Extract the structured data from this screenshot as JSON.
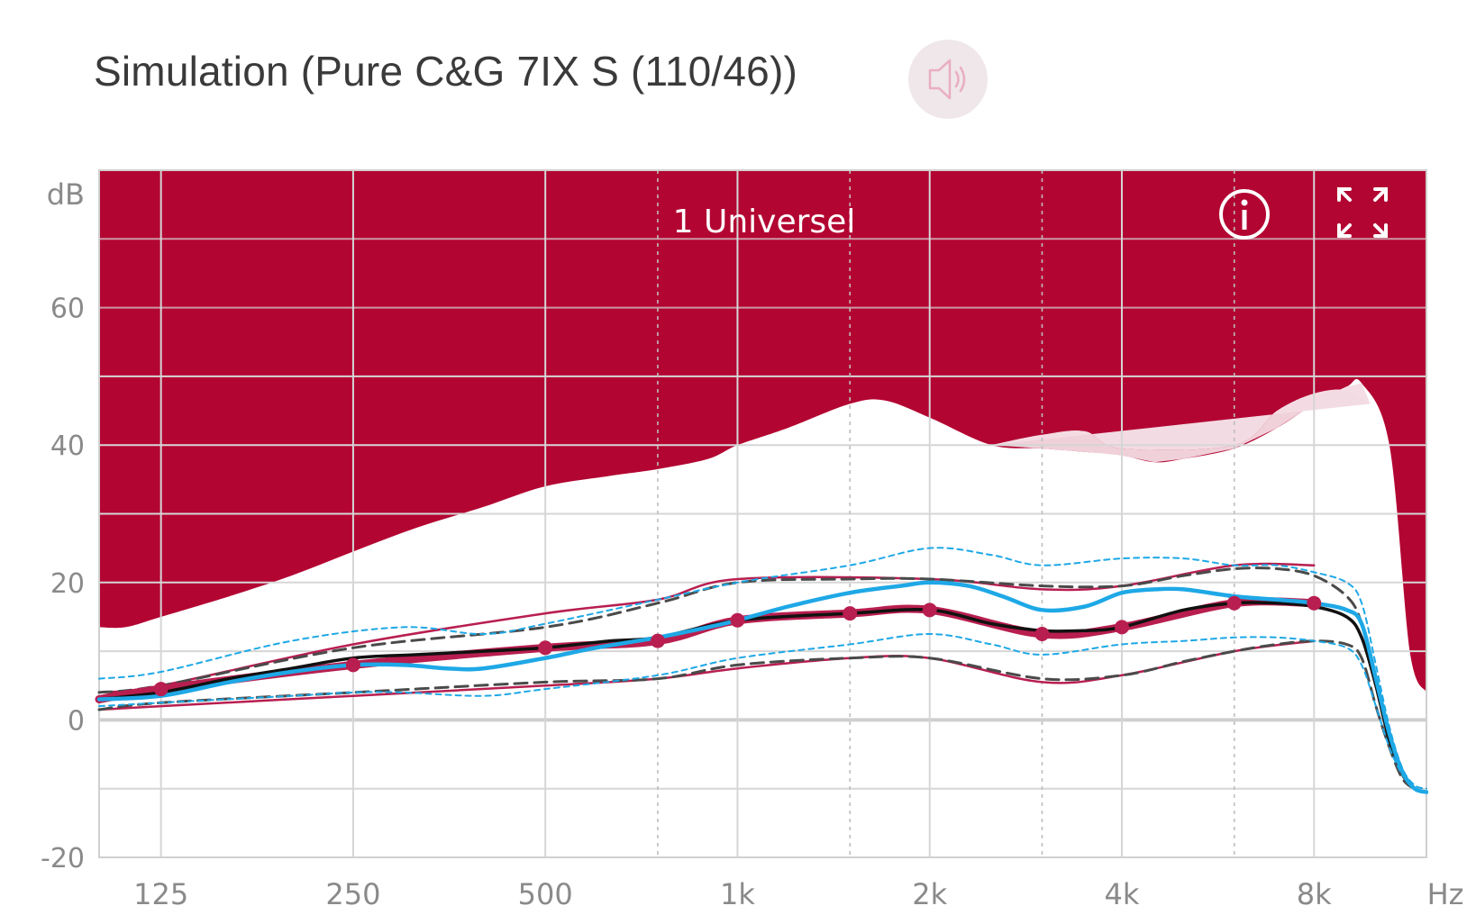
{
  "header": {
    "title": "Simulation (Pure C&G 7IX S (110/46))",
    "speaker_icon": "speaker-icon"
  },
  "colors": {
    "crimson": "#b30532",
    "pink_fill": "#f3dbe3",
    "target_line": "#b81e4f",
    "simulation_line": "#1ea8e6",
    "aided_line": "#111111",
    "dashed_line": "#4a4a4a"
  },
  "chart_data": {
    "type": "line",
    "program_label": "1 Universel",
    "ylabel": "dB",
    "xlabel": "Hz",
    "x_scale": "log",
    "xlim": [
      100,
      12000
    ],
    "ylim": [
      -20,
      80
    ],
    "y_ticks": [
      {
        "value": -20,
        "label": "-20"
      },
      {
        "value": 0,
        "label": "0"
      },
      {
        "value": 20,
        "label": "20"
      },
      {
        "value": 40,
        "label": "40"
      },
      {
        "value": 60,
        "label": "60"
      }
    ],
    "y_grid": [
      -20,
      -10,
      0,
      10,
      20,
      30,
      40,
      50,
      60,
      70,
      80
    ],
    "x_ticks": [
      {
        "value": 125,
        "label": "125"
      },
      {
        "value": 250,
        "label": "250"
      },
      {
        "value": 500,
        "label": "500"
      },
      {
        "value": 1000,
        "label": "1k"
      },
      {
        "value": 2000,
        "label": "2k"
      },
      {
        "value": 4000,
        "label": "4k"
      },
      {
        "value": 8000,
        "label": "8k"
      }
    ],
    "x_minor_grid": [
      750,
      1500,
      3000,
      6000
    ],
    "icons": {
      "info": "info-icon",
      "expand": "expand-icon"
    },
    "series": [
      {
        "role": "uncomfortable_level",
        "x": [
          100,
          110,
          125,
          160,
          200,
          250,
          315,
          400,
          500,
          630,
          750,
          900,
          1000,
          1200,
          1500,
          1700,
          2000,
          2500,
          3000,
          3500,
          4000,
          4500,
          5000,
          6000,
          7000,
          8000,
          9000,
          9500,
          10500,
          11300,
          12000
        ],
        "y": [
          13.5,
          13.5,
          15,
          18,
          21,
          24.5,
          28,
          31,
          34,
          35.5,
          36.5,
          38,
          40,
          42.5,
          46,
          46.5,
          44,
          40,
          39.5,
          39,
          38.5,
          37.5,
          38,
          39.5,
          42.5,
          46,
          48.5,
          49,
          40,
          10,
          4
        ]
      },
      {
        "role": "uncomfortable_level_alt",
        "x": [
          2500,
          3000,
          3500,
          4000,
          6000,
          7000,
          8000,
          9000,
          9800
        ],
        "y": [
          40,
          41.5,
          42,
          39.5,
          40,
          45,
          47.5,
          48,
          46
        ]
      },
      {
        "role": "target_upper",
        "x": [
          100,
          125,
          250,
          500,
          750,
          1000,
          2000,
          3000,
          4000,
          6000,
          8000
        ],
        "y": [
          4,
          5,
          11,
          15.5,
          17.5,
          20.5,
          20.5,
          19,
          19.5,
          22.5,
          22.5
        ]
      },
      {
        "role": "target",
        "x": [
          100,
          125,
          250,
          500,
          750,
          1000,
          1500,
          2000,
          3000,
          4000,
          6000,
          8000
        ],
        "y": [
          3,
          4.5,
          8,
          10.5,
          11.5,
          14.5,
          15.5,
          16,
          12.5,
          13.5,
          17,
          17
        ]
      },
      {
        "role": "target_lower",
        "x": [
          100,
          125,
          250,
          500,
          750,
          1000,
          1500,
          2000,
          3000,
          4000,
          6000,
          8000
        ],
        "y": [
          1.5,
          2,
          3.5,
          5,
          6,
          7.5,
          9,
          9,
          5.5,
          6.5,
          10,
          11.5
        ]
      },
      {
        "role": "aided_max_dashed",
        "x": [
          100,
          125,
          250,
          500,
          750,
          1000,
          1500,
          2000,
          3000,
          4000,
          5000,
          6000,
          7000,
          8000,
          9000,
          9500,
          10000,
          10500,
          11000,
          11500,
          12000
        ],
        "y": [
          4,
          5,
          10.5,
          13.5,
          17,
          20,
          20.5,
          20.5,
          19.5,
          19.5,
          21,
          22,
          22,
          21,
          18,
          14,
          5,
          -3,
          -8,
          -10,
          -10.5
        ]
      },
      {
        "role": "aided_min_dashed",
        "x": [
          100,
          125,
          250,
          500,
          750,
          1000,
          1500,
          2000,
          3000,
          4000,
          5000,
          6000,
          7000,
          8000,
          9000,
          9500,
          10000,
          10500,
          11000,
          11500,
          12000
        ],
        "y": [
          1.5,
          2.5,
          4,
          5.5,
          6,
          8,
          9,
          9,
          6,
          6.5,
          8.5,
          10,
          11,
          11.5,
          11,
          9,
          2,
          -4,
          -8.5,
          -10,
          -10.5
        ]
      },
      {
        "role": "aided",
        "x": [
          100,
          125,
          160,
          200,
          250,
          315,
          400,
          500,
          630,
          750,
          1000,
          1500,
          2000,
          2500,
          3000,
          3500,
          4000,
          5000,
          6000,
          7000,
          8000,
          9000,
          9500,
          10000,
          10500,
          11000,
          11500,
          12000
        ],
        "y": [
          3,
          4,
          6,
          7.5,
          9,
          9.5,
          10,
          10.5,
          11.5,
          12,
          14.5,
          15.5,
          16,
          14,
          13,
          13,
          13.5,
          16,
          17,
          17,
          16.5,
          15,
          12,
          5,
          -3,
          -7.5,
          -10,
          -10.5
        ]
      },
      {
        "role": "simulation_upper_dashed",
        "x": [
          100,
          125,
          200,
          300,
          400,
          500,
          750,
          1000,
          1500,
          2000,
          2500,
          3000,
          4000,
          5000,
          6000,
          7000,
          8000,
          9000,
          9500,
          10000,
          10500,
          11000,
          11500,
          12000
        ],
        "y": [
          6,
          7,
          11.5,
          13.5,
          12.5,
          14,
          17.5,
          20,
          22.5,
          25,
          24,
          22.5,
          23.5,
          23.5,
          22.5,
          22.5,
          21.5,
          20,
          17,
          8,
          -1,
          -7,
          -9.5,
          -10
        ]
      },
      {
        "role": "simulation",
        "x": [
          100,
          125,
          160,
          200,
          250,
          300,
          350,
          400,
          500,
          600,
          750,
          900,
          1000,
          1200,
          1500,
          1800,
          2000,
          2300,
          2600,
          3000,
          3500,
          4000,
          4500,
          5000,
          6000,
          7000,
          8000,
          9000,
          9500,
          10000,
          10500,
          11000,
          11500,
          12000
        ],
        "y": [
          3,
          3.5,
          5.5,
          7,
          8,
          8,
          7.5,
          7.5,
          9,
          10.5,
          12,
          13.5,
          14.5,
          16.5,
          18.5,
          19.5,
          20,
          19.5,
          18,
          16,
          16.5,
          18.5,
          19,
          19,
          18,
          17.5,
          17,
          16,
          14,
          6,
          -2,
          -7.5,
          -10,
          -10.5
        ]
      },
      {
        "role": "simulation_lower_dashed",
        "x": [
          100,
          125,
          200,
          250,
          300,
          400,
          500,
          750,
          1000,
          1500,
          2000,
          2500,
          3000,
          4000,
          5000,
          6000,
          7000,
          8000,
          9000,
          9500,
          10000,
          10500,
          11000,
          11500,
          12000
        ],
        "y": [
          2,
          2.5,
          3.5,
          4,
          4,
          3.5,
          4.5,
          6.5,
          9,
          11,
          12.5,
          11,
          9.5,
          11,
          11.5,
          12,
          12,
          11.5,
          10.5,
          8,
          2,
          -4,
          -8,
          -10,
          -10.5
        ]
      }
    ]
  }
}
